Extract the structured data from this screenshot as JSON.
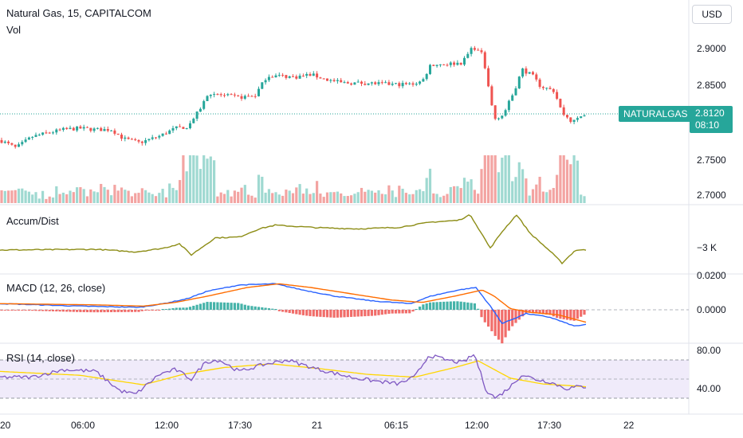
{
  "header": {
    "symbol_title": "Natural Gas, 15, CAPITALCOM",
    "vol_label": "Vol",
    "currency": "USD"
  },
  "price_scale": {
    "ticks": [
      "2.9000",
      "2.8500",
      "2.7500",
      "2.7000"
    ],
    "last_symbol": "NATURALGAS",
    "last_price": "2.8120",
    "countdown": "08:10"
  },
  "indicators": {
    "accum_dist": {
      "title": "Accum/Dist",
      "tick": "−3 K"
    },
    "macd": {
      "title": "MACD (12, 26, close)",
      "ticks": [
        "0.0200",
        "0.0000"
      ]
    },
    "rsi": {
      "title": "RSI (14, close)",
      "ticks": [
        "80.00",
        "40.00"
      ]
    }
  },
  "time_axis": [
    "20",
    "06:00",
    "12:00",
    "17:30",
    "21",
    "06:15",
    "12:00",
    "17:30",
    "22"
  ],
  "colors": {
    "up": "#26a69a",
    "down": "#ef5350",
    "vol_up": "#9fd9d1",
    "vol_down": "#f3a4a2",
    "ad_line": "#8c8c14",
    "macd_line": "#2962ff",
    "signal_line": "#ff6d00",
    "rsi_line": "#7e57c2",
    "rsi_ma": "#ffd600",
    "rsi_band": "#f0ebfa"
  },
  "chart_data": {
    "type": "candlestick",
    "price_range": [
      2.68,
      2.935
    ],
    "price_waypoints": [
      [
        0,
        2.77
      ],
      [
        20,
        2.758
      ],
      [
        40,
        2.775
      ],
      [
        60,
        2.781
      ],
      [
        80,
        2.786
      ],
      [
        100,
        2.788
      ],
      [
        120,
        2.786
      ],
      [
        140,
        2.786
      ],
      [
        155,
        2.772
      ],
      [
        175,
        2.766
      ],
      [
        200,
        2.776
      ],
      [
        220,
        2.788
      ],
      [
        235,
        2.79
      ],
      [
        248,
        2.812
      ],
      [
        262,
        2.842
      ],
      [
        280,
        2.838
      ],
      [
        300,
        2.835
      ],
      [
        320,
        2.838
      ],
      [
        335,
        2.868
      ],
      [
        350,
        2.868
      ],
      [
        370,
        2.866
      ],
      [
        390,
        2.87
      ],
      [
        410,
        2.862
      ],
      [
        430,
        2.857
      ],
      [
        460,
        2.857
      ],
      [
        490,
        2.855
      ],
      [
        515,
        2.855
      ],
      [
        530,
        2.86
      ],
      [
        540,
        2.885
      ],
      [
        560,
        2.886
      ],
      [
        580,
        2.888
      ],
      [
        593,
        2.913
      ],
      [
        605,
        2.9
      ],
      [
        612,
        2.855
      ],
      [
        620,
        2.802
      ],
      [
        632,
        2.81
      ],
      [
        645,
        2.845
      ],
      [
        655,
        2.878
      ],
      [
        668,
        2.868
      ],
      [
        678,
        2.852
      ],
      [
        695,
        2.845
      ],
      [
        705,
        2.812
      ],
      [
        718,
        2.797
      ],
      [
        735,
        2.812
      ]
    ],
    "ad_waypoints": [
      [
        0,
        0.05
      ],
      [
        60,
        0.06
      ],
      [
        120,
        0.07
      ],
      [
        170,
        0.0
      ],
      [
        205,
        0.1
      ],
      [
        225,
        0.22
      ],
      [
        240,
        -0.08
      ],
      [
        270,
        0.38
      ],
      [
        300,
        0.4
      ],
      [
        325,
        0.62
      ],
      [
        345,
        0.72
      ],
      [
        400,
        0.65
      ],
      [
        450,
        0.62
      ],
      [
        500,
        0.66
      ],
      [
        540,
        0.8
      ],
      [
        575,
        0.85
      ],
      [
        590,
        1.0
      ],
      [
        615,
        0.1
      ],
      [
        630,
        0.55
      ],
      [
        648,
        1.0
      ],
      [
        665,
        0.5
      ],
      [
        690,
        0.02
      ],
      [
        705,
        -0.3
      ],
      [
        722,
        0.05
      ],
      [
        735,
        0.05
      ]
    ],
    "macd_range": [
      -0.03,
      0.022
    ],
    "macd_waypoints": [
      [
        0,
        0.0
      ],
      [
        100,
        -0.002
      ],
      [
        175,
        -0.003
      ],
      [
        205,
        0.0
      ],
      [
        235,
        0.004
      ],
      [
        260,
        0.01
      ],
      [
        300,
        0.015
      ],
      [
        345,
        0.016
      ],
      [
        380,
        0.011
      ],
      [
        420,
        0.006
      ],
      [
        470,
        0.002
      ],
      [
        515,
        0.0
      ],
      [
        540,
        0.006
      ],
      [
        575,
        0.011
      ],
      [
        597,
        0.013
      ],
      [
        615,
        -0.002
      ],
      [
        630,
        -0.016
      ],
      [
        660,
        -0.008
      ],
      [
        690,
        -0.011
      ],
      [
        720,
        -0.018
      ],
      [
        735,
        -0.017
      ]
    ],
    "signal_waypoints": [
      [
        0,
        0.0
      ],
      [
        120,
        -0.001
      ],
      [
        180,
        -0.002
      ],
      [
        220,
        0.001
      ],
      [
        260,
        0.006
      ],
      [
        310,
        0.013
      ],
      [
        350,
        0.016
      ],
      [
        390,
        0.013
      ],
      [
        440,
        0.008
      ],
      [
        490,
        0.003
      ],
      [
        530,
        0.001
      ],
      [
        570,
        0.006
      ],
      [
        605,
        0.011
      ],
      [
        620,
        0.006
      ],
      [
        640,
        -0.004
      ],
      [
        665,
        -0.007
      ],
      [
        700,
        -0.009
      ],
      [
        735,
        -0.015
      ]
    ],
    "rsi_range": [
      25,
      88
    ],
    "rsi_waypoints": [
      [
        0,
        52
      ],
      [
        40,
        52
      ],
      [
        80,
        60
      ],
      [
        120,
        58
      ],
      [
        150,
        38
      ],
      [
        170,
        34
      ],
      [
        200,
        55
      ],
      [
        220,
        60
      ],
      [
        240,
        50
      ],
      [
        258,
        68
      ],
      [
        275,
        70
      ],
      [
        300,
        58
      ],
      [
        330,
        65
      ],
      [
        360,
        70
      ],
      [
        400,
        60
      ],
      [
        440,
        52
      ],
      [
        470,
        48
      ],
      [
        500,
        45
      ],
      [
        520,
        52
      ],
      [
        538,
        75
      ],
      [
        560,
        70
      ],
      [
        580,
        67
      ],
      [
        595,
        76
      ],
      [
        610,
        38
      ],
      [
        622,
        30
      ],
      [
        640,
        42
      ],
      [
        655,
        55
      ],
      [
        670,
        50
      ],
      [
        690,
        47
      ],
      [
        710,
        40
      ],
      [
        725,
        42
      ],
      [
        735,
        42
      ]
    ],
    "rsi_ma_waypoints": [
      [
        0,
        58
      ],
      [
        100,
        54
      ],
      [
        180,
        44
      ],
      [
        230,
        55
      ],
      [
        280,
        62
      ],
      [
        340,
        66
      ],
      [
        400,
        61
      ],
      [
        460,
        55
      ],
      [
        520,
        52
      ],
      [
        570,
        62
      ],
      [
        600,
        69
      ],
      [
        640,
        51
      ],
      [
        680,
        45
      ],
      [
        735,
        42
      ]
    ],
    "rsi_levels": [
      70,
      30
    ]
  }
}
